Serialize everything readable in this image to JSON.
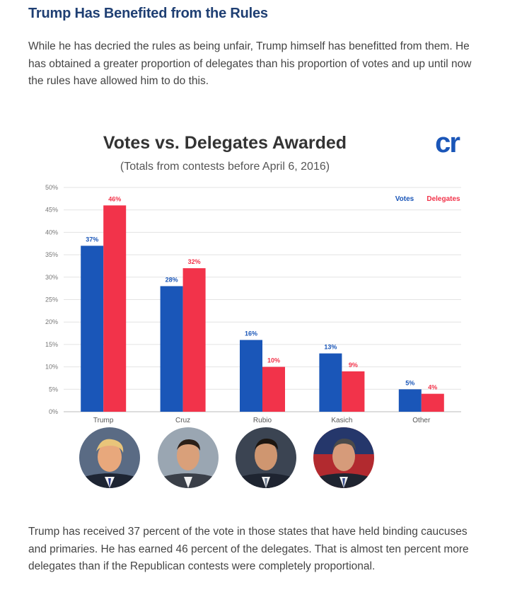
{
  "headline": "Trump Has Benefited from the Rules",
  "intro_text": "While he has decried the rules as being unfair, Trump himself has benefitted from them. He has obtained a greater proportion of delegates than his proportion of votes and up until now the rules have allowed him to do this.",
  "closing_text": "Trump has received 37 percent of the vote in those states that have held binding caucuses and primaries. He has earned 46 percent of the delegates. That is almost ten percent more delegates than if the Republican contests were completely proportional.",
  "logo_text": "cr",
  "colors": {
    "votes": "#1a56b8",
    "delegates": "#f2334a",
    "title": "#333333",
    "headline": "#1f3f73"
  },
  "photos": [
    {
      "name": "Trump",
      "icon": "candidate-photo"
    },
    {
      "name": "Cruz",
      "icon": "candidate-photo"
    },
    {
      "name": "Rubio",
      "icon": "candidate-photo"
    },
    {
      "name": "Kasich",
      "icon": "candidate-photo"
    }
  ],
  "chart_data": {
    "type": "bar",
    "title": "Votes vs. Delegates Awarded",
    "subtitle": "(Totals from contests before April 6, 2016)",
    "categories": [
      "Trump",
      "Cruz",
      "Rubio",
      "Kasich",
      "Other"
    ],
    "series": [
      {
        "name": "Votes",
        "values": [
          37,
          28,
          16,
          13,
          5
        ],
        "labels": [
          "37%",
          "28%",
          "16%",
          "13%",
          "5%"
        ]
      },
      {
        "name": "Delegates",
        "values": [
          46,
          32,
          10,
          9,
          4
        ],
        "labels": [
          "46%",
          "32%",
          "10%",
          "9%",
          "4%"
        ]
      }
    ],
    "ylim": [
      0,
      50
    ],
    "yticks": [
      "0%",
      "5%",
      "10%",
      "15%",
      "20%",
      "25%",
      "30%",
      "35%",
      "40%",
      "45%",
      "50%"
    ],
    "xlabel": "",
    "ylabel": "",
    "legend": "top-right",
    "grid": true
  }
}
